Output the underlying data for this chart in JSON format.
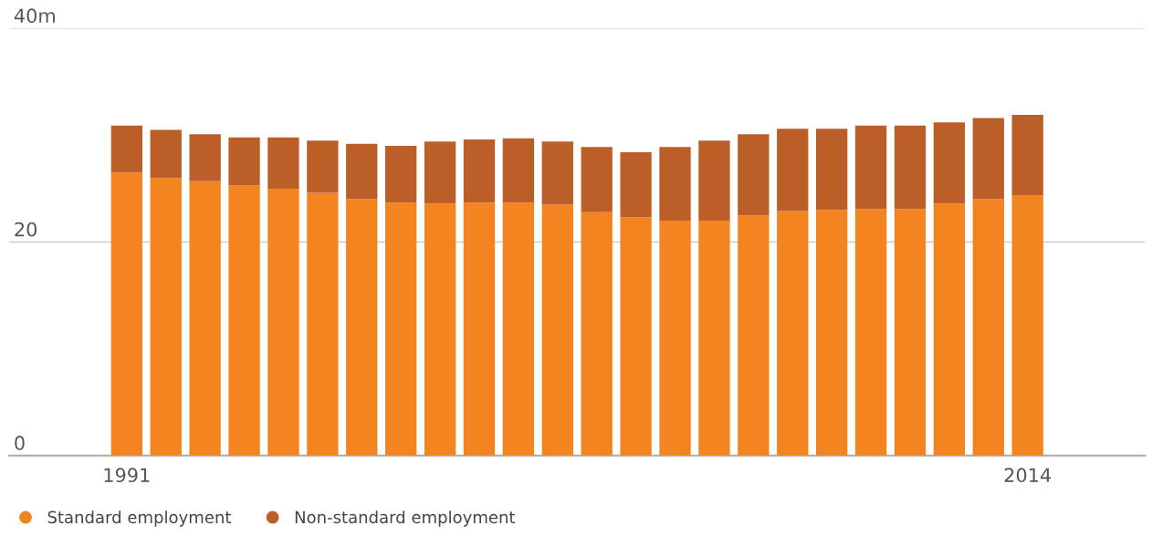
{
  "chart_data": {
    "type": "bar",
    "stacked": true,
    "x": [
      1991,
      1992,
      1993,
      1994,
      1995,
      1996,
      1997,
      1998,
      1999,
      2000,
      2001,
      2002,
      2003,
      2004,
      2005,
      2006,
      2007,
      2008,
      2009,
      2010,
      2011,
      2012,
      2013,
      2014
    ],
    "series": [
      {
        "name": "Standard employment",
        "color": "#f4841f",
        "values": [
          26.5,
          26.0,
          25.7,
          25.3,
          25.0,
          24.6,
          24.0,
          23.7,
          23.6,
          23.7,
          23.7,
          23.5,
          22.8,
          22.3,
          22.0,
          22.0,
          22.5,
          22.9,
          23.0,
          23.1,
          23.1,
          23.6,
          24.0,
          24.4
        ]
      },
      {
        "name": "Non-standard employment",
        "color": "#bb5e27",
        "values": [
          4.4,
          4.5,
          4.4,
          4.5,
          4.8,
          4.9,
          5.2,
          5.3,
          5.8,
          5.9,
          6.0,
          5.9,
          6.1,
          6.1,
          6.9,
          7.5,
          7.6,
          7.7,
          7.6,
          7.8,
          7.8,
          7.6,
          7.6,
          7.5
        ]
      }
    ],
    "xlim": [
      1988,
      2017
    ],
    "xticks": [
      1991,
      2014
    ],
    "ylim": [
      0,
      40
    ],
    "yticks": [
      0,
      20,
      {
        "value": 40,
        "label": "40m"
      }
    ],
    "grid": "y",
    "legend": "bottom"
  }
}
